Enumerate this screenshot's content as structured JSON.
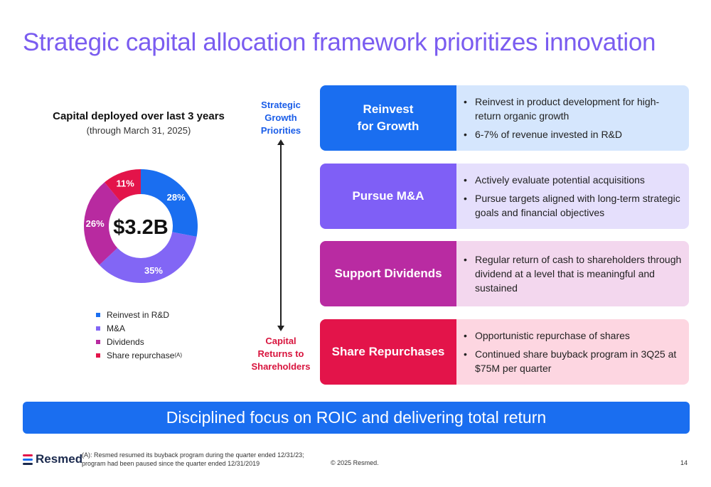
{
  "title": "Strategic capital allocation framework prioritizes innovation",
  "chart_data": {
    "type": "pie",
    "title": "Capital deployed over last 3 years",
    "subtitle": "(through March 31, 2025)",
    "center_label": "$3.2B",
    "categories": [
      "Reinvest in R&D",
      "M&A",
      "Dividends",
      "Share repurchase"
    ],
    "values": [
      28,
      35,
      26,
      11
    ],
    "value_labels": [
      "28%",
      "35%",
      "26%",
      "11%"
    ],
    "legend_sup": "(A)",
    "colors": [
      "#1a6ef0",
      "#8266f5",
      "#b82aa0",
      "#e3144a"
    ],
    "legend_position": "bottom"
  },
  "axis": {
    "top_lines": [
      "Strategic",
      "Growth",
      "Priorities"
    ],
    "bottom_lines": [
      "Capital",
      "Returns to",
      "Shareholders"
    ]
  },
  "priorities": [
    {
      "label_lines": [
        "Reinvest",
        "for Growth"
      ],
      "color": "#1a6ef0",
      "bg": "#d5e6fd",
      "bullets": [
        "Reinvest in product development for high-return organic growth",
        "6-7% of revenue invested in R&D"
      ]
    },
    {
      "label_lines": [
        "Pursue M&A"
      ],
      "color": "#7f5ff6",
      "bg": "#e5dffc",
      "bullets": [
        "Actively evaluate potential acquisitions",
        "Pursue targets aligned with long-term strategic goals and financial objectives"
      ]
    },
    {
      "label_lines": [
        "Support Dividends"
      ],
      "color": "#b92ba2",
      "bg": "#f3d7ee",
      "bullets": [
        "Regular return of cash to shareholders through dividend at a level that is meaningful and sustained"
      ]
    },
    {
      "label_lines": [
        "Share Repurchases"
      ],
      "color": "#e3144a",
      "bg": "#fdd6e1",
      "bullets": [
        "Opportunistic repurchase of shares",
        "Continued share buyback program in 3Q25 at $75M per quarter"
      ]
    }
  ],
  "banner": "Disciplined focus on ROIC and delivering total return",
  "logo_text": "Resmed",
  "footnote": "(A): Resmed resumed its buyback program during the quarter ended 12/31/23; program had been paused since the quarter ended 12/31/2019",
  "copyright": "© 2025 Resmed.",
  "page_number": "14"
}
